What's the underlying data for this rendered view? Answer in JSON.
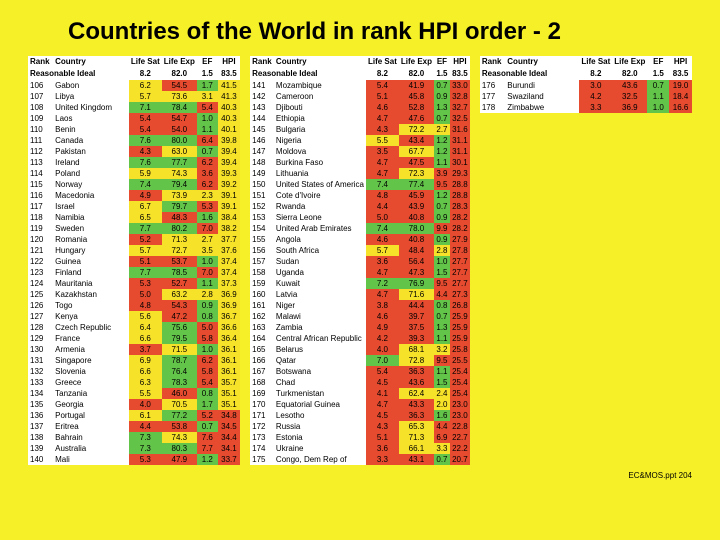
{
  "background_color": "#f5f028",
  "title": "Countries of the World in rank HPI order - 2",
  "footer": "EC&MOS.ppt 204",
  "headers": {
    "rank": "Rank",
    "country": "Country",
    "lifesat": "Life Sat",
    "lifeexp": "Life Exp",
    "ef": "EF",
    "hpi": "HPI"
  },
  "ideal": {
    "label": "Reasonable Ideal",
    "lifesat": "8.2",
    "lifeexp": "82.0",
    "ef": "1.5",
    "hpi": "83.5"
  },
  "color_thresholds": {
    "lifesat": {
      "green": 7.0,
      "yellow": 5.5
    },
    "lifeexp": {
      "green": 75,
      "yellow": 60
    },
    "ef": {
      "green_max": 1.8,
      "yellow_max": 3.5
    },
    "hpi": {
      "green": 50,
      "yellow": 35
    }
  },
  "colors": {
    "green": "#63c44a",
    "yellow": "#f7e22a",
    "red": "#e64a2f"
  },
  "table1": [
    {
      "rank": "106",
      "country": "Gabon",
      "lifesat": "6.2",
      "lifeexp": "54.5",
      "ef": "1.7",
      "hpi": "41.5"
    },
    {
      "rank": "107",
      "country": "Libya",
      "lifesat": "5.7",
      "lifeexp": "73.6",
      "ef": "3.1",
      "hpi": "41.3"
    },
    {
      "rank": "108",
      "country": "United Kingdom",
      "lifesat": "7.1",
      "lifeexp": "78.4",
      "ef": "5.4",
      "hpi": "40.3"
    },
    {
      "rank": "109",
      "country": "Laos",
      "lifesat": "5.4",
      "lifeexp": "54.7",
      "ef": "1.0",
      "hpi": "40.3"
    },
    {
      "rank": "110",
      "country": "Benin",
      "lifesat": "5.4",
      "lifeexp": "54.0",
      "ef": "1.1",
      "hpi": "40.1"
    },
    {
      "rank": "111",
      "country": "Canada",
      "lifesat": "7.6",
      "lifeexp": "80.0",
      "ef": "6.4",
      "hpi": "39.8"
    },
    {
      "rank": "112",
      "country": "Pakistan",
      "lifesat": "4.3",
      "lifeexp": "63.0",
      "ef": "0.7",
      "hpi": "39.4"
    },
    {
      "rank": "113",
      "country": "Ireland",
      "lifesat": "7.6",
      "lifeexp": "77.7",
      "ef": "6.2",
      "hpi": "39.4"
    },
    {
      "rank": "114",
      "country": "Poland",
      "lifesat": "5.9",
      "lifeexp": "74.3",
      "ef": "3.6",
      "hpi": "39.3"
    },
    {
      "rank": "115",
      "country": "Norway",
      "lifesat": "7.4",
      "lifeexp": "79.4",
      "ef": "6.2",
      "hpi": "39.2"
    },
    {
      "rank": "116",
      "country": "Macedonia",
      "lifesat": "4.9",
      "lifeexp": "73.9",
      "ef": "2.3",
      "hpi": "39.1"
    },
    {
      "rank": "117",
      "country": "Israel",
      "lifesat": "6.7",
      "lifeexp": "79.7",
      "ef": "5.3",
      "hpi": "39.1"
    },
    {
      "rank": "118",
      "country": "Namibia",
      "lifesat": "6.5",
      "lifeexp": "48.3",
      "ef": "1.6",
      "hpi": "38.4"
    },
    {
      "rank": "119",
      "country": "Sweden",
      "lifesat": "7.7",
      "lifeexp": "80.2",
      "ef": "7.0",
      "hpi": "38.2"
    },
    {
      "rank": "120",
      "country": "Romania",
      "lifesat": "5.2",
      "lifeexp": "71.3",
      "ef": "2.7",
      "hpi": "37.7"
    },
    {
      "rank": "121",
      "country": "Hungary",
      "lifesat": "5.7",
      "lifeexp": "72.7",
      "ef": "3.5",
      "hpi": "37.6"
    },
    {
      "rank": "122",
      "country": "Guinea",
      "lifesat": "5.1",
      "lifeexp": "53.7",
      "ef": "1.0",
      "hpi": "37.4"
    },
    {
      "rank": "123",
      "country": "Finland",
      "lifesat": "7.7",
      "lifeexp": "78.5",
      "ef": "7.0",
      "hpi": "37.4"
    },
    {
      "rank": "124",
      "country": "Mauritania",
      "lifesat": "5.3",
      "lifeexp": "52.7",
      "ef": "1.1",
      "hpi": "37.3"
    },
    {
      "rank": "125",
      "country": "Kazakhstan",
      "lifesat": "5.0",
      "lifeexp": "63.2",
      "ef": "2.8",
      "hpi": "36.9"
    },
    {
      "rank": "126",
      "country": "Togo",
      "lifesat": "4.8",
      "lifeexp": "54.3",
      "ef": "0.9",
      "hpi": "36.9"
    },
    {
      "rank": "127",
      "country": "Kenya",
      "lifesat": "5.6",
      "lifeexp": "47.2",
      "ef": "0.8",
      "hpi": "36.7"
    },
    {
      "rank": "128",
      "country": "Czech Republic",
      "lifesat": "6.4",
      "lifeexp": "75.6",
      "ef": "5.0",
      "hpi": "36.6"
    },
    {
      "rank": "129",
      "country": "France",
      "lifesat": "6.6",
      "lifeexp": "79.5",
      "ef": "5.8",
      "hpi": "36.4"
    },
    {
      "rank": "130",
      "country": "Armenia",
      "lifesat": "3.7",
      "lifeexp": "71.5",
      "ef": "1.0",
      "hpi": "36.1"
    },
    {
      "rank": "131",
      "country": "Singapore",
      "lifesat": "6.9",
      "lifeexp": "78.7",
      "ef": "6.2",
      "hpi": "36.1"
    },
    {
      "rank": "132",
      "country": "Slovenia",
      "lifesat": "6.6",
      "lifeexp": "76.4",
      "ef": "5.8",
      "hpi": "36.1"
    },
    {
      "rank": "133",
      "country": "Greece",
      "lifesat": "6.3",
      "lifeexp": "78.3",
      "ef": "5.4",
      "hpi": "35.7"
    },
    {
      "rank": "134",
      "country": "Tanzania",
      "lifesat": "5.5",
      "lifeexp": "46.0",
      "ef": "0.8",
      "hpi": "35.1"
    },
    {
      "rank": "135",
      "country": "Georgia",
      "lifesat": "4.0",
      "lifeexp": "70.5",
      "ef": "1.7",
      "hpi": "35.1"
    },
    {
      "rank": "136",
      "country": "Portugal",
      "lifesat": "6.1",
      "lifeexp": "77.2",
      "ef": "5.2",
      "hpi": "34.8"
    },
    {
      "rank": "137",
      "country": "Eritrea",
      "lifesat": "4.4",
      "lifeexp": "53.8",
      "ef": "0.7",
      "hpi": "34.5"
    },
    {
      "rank": "138",
      "country": "Bahrain",
      "lifesat": "7.3",
      "lifeexp": "74.3",
      "ef": "7.6",
      "hpi": "34.4"
    },
    {
      "rank": "139",
      "country": "Australia",
      "lifesat": "7.3",
      "lifeexp": "80.3",
      "ef": "7.7",
      "hpi": "34.1"
    },
    {
      "rank": "140",
      "country": "Mali",
      "lifesat": "5.3",
      "lifeexp": "47.9",
      "ef": "1.2",
      "hpi": "33.7"
    }
  ],
  "table2": [
    {
      "rank": "141",
      "country": "Mozambique",
      "lifesat": "5.4",
      "lifeexp": "41.9",
      "ef": "0.7",
      "hpi": "33.0"
    },
    {
      "rank": "142",
      "country": "Cameroon",
      "lifesat": "5.1",
      "lifeexp": "45.8",
      "ef": "0.9",
      "hpi": "32.8"
    },
    {
      "rank": "143",
      "country": "Djibouti",
      "lifesat": "4.6",
      "lifeexp": "52.8",
      "ef": "1.3",
      "hpi": "32.7"
    },
    {
      "rank": "144",
      "country": "Ethiopia",
      "lifesat": "4.7",
      "lifeexp": "47.6",
      "ef": "0.7",
      "hpi": "32.5"
    },
    {
      "rank": "145",
      "country": "Bulgaria",
      "lifesat": "4.3",
      "lifeexp": "72.2",
      "ef": "2.7",
      "hpi": "31.6"
    },
    {
      "rank": "146",
      "country": "Nigeria",
      "lifesat": "5.5",
      "lifeexp": "43.4",
      "ef": "1.2",
      "hpi": "31.1"
    },
    {
      "rank": "147",
      "country": "Moldova",
      "lifesat": "3.5",
      "lifeexp": "67.7",
      "ef": "1.2",
      "hpi": "31.1"
    },
    {
      "rank": "148",
      "country": "Burkina Faso",
      "lifesat": "4.7",
      "lifeexp": "47.5",
      "ef": "1.1",
      "hpi": "30.1"
    },
    {
      "rank": "149",
      "country": "Lithuania",
      "lifesat": "4.7",
      "lifeexp": "72.3",
      "ef": "3.9",
      "hpi": "29.3"
    },
    {
      "rank": "150",
      "country": "United States of America",
      "lifesat": "7.4",
      "lifeexp": "77.4",
      "ef": "9.5",
      "hpi": "28.8"
    },
    {
      "rank": "151",
      "country": "Cote d'Ivoire",
      "lifesat": "4.8",
      "lifeexp": "45.9",
      "ef": "1.2",
      "hpi": "28.8"
    },
    {
      "rank": "152",
      "country": "Rwanda",
      "lifesat": "4.4",
      "lifeexp": "43.9",
      "ef": "0.7",
      "hpi": "28.3"
    },
    {
      "rank": "153",
      "country": "Sierra Leone",
      "lifesat": "5.0",
      "lifeexp": "40.8",
      "ef": "0.9",
      "hpi": "28.2"
    },
    {
      "rank": "154",
      "country": "United Arab Emirates",
      "lifesat": "7.4",
      "lifeexp": "78.0",
      "ef": "9.9",
      "hpi": "28.2"
    },
    {
      "rank": "155",
      "country": "Angola",
      "lifesat": "4.6",
      "lifeexp": "40.8",
      "ef": "0.9",
      "hpi": "27.9"
    },
    {
      "rank": "156",
      "country": "South Africa",
      "lifesat": "5.7",
      "lifeexp": "48.4",
      "ef": "2.8",
      "hpi": "27.8"
    },
    {
      "rank": "157",
      "country": "Sudan",
      "lifesat": "3.6",
      "lifeexp": "56.4",
      "ef": "1.0",
      "hpi": "27.7"
    },
    {
      "rank": "158",
      "country": "Uganda",
      "lifesat": "4.7",
      "lifeexp": "47.3",
      "ef": "1.5",
      "hpi": "27.7"
    },
    {
      "rank": "159",
      "country": "Kuwait",
      "lifesat": "7.2",
      "lifeexp": "76.9",
      "ef": "9.5",
      "hpi": "27.7"
    },
    {
      "rank": "160",
      "country": "Latvia",
      "lifesat": "4.7",
      "lifeexp": "71.6",
      "ef": "4.4",
      "hpi": "27.3"
    },
    {
      "rank": "161",
      "country": "Niger",
      "lifesat": "3.8",
      "lifeexp": "44.4",
      "ef": "0.8",
      "hpi": "26.8"
    },
    {
      "rank": "162",
      "country": "Malawi",
      "lifesat": "4.6",
      "lifeexp": "39.7",
      "ef": "0.7",
      "hpi": "25.9"
    },
    {
      "rank": "163",
      "country": "Zambia",
      "lifesat": "4.9",
      "lifeexp": "37.5",
      "ef": "1.3",
      "hpi": "25.9"
    },
    {
      "rank": "164",
      "country": "Central African Republic",
      "lifesat": "4.2",
      "lifeexp": "39.3",
      "ef": "1.1",
      "hpi": "25.9"
    },
    {
      "rank": "165",
      "country": "Belarus",
      "lifesat": "4.0",
      "lifeexp": "68.1",
      "ef": "3.2",
      "hpi": "25.8"
    },
    {
      "rank": "166",
      "country": "Qatar",
      "lifesat": "7.0",
      "lifeexp": "72.8",
      "ef": "9.5",
      "hpi": "25.5"
    },
    {
      "rank": "167",
      "country": "Botswana",
      "lifesat": "5.4",
      "lifeexp": "36.3",
      "ef": "1.1",
      "hpi": "25.4"
    },
    {
      "rank": "168",
      "country": "Chad",
      "lifesat": "4.5",
      "lifeexp": "43.6",
      "ef": "1.5",
      "hpi": "25.4"
    },
    {
      "rank": "169",
      "country": "Turkmenistan",
      "lifesat": "4.1",
      "lifeexp": "62.4",
      "ef": "2.4",
      "hpi": "25.4"
    },
    {
      "rank": "170",
      "country": "Equatorial Guinea",
      "lifesat": "4.7",
      "lifeexp": "43.3",
      "ef": "2.0",
      "hpi": "23.0"
    },
    {
      "rank": "171",
      "country": "Lesotho",
      "lifesat": "4.5",
      "lifeexp": "36.3",
      "ef": "1.6",
      "hpi": "23.0"
    },
    {
      "rank": "172",
      "country": "Russia",
      "lifesat": "4.3",
      "lifeexp": "65.3",
      "ef": "4.4",
      "hpi": "22.8"
    },
    {
      "rank": "173",
      "country": "Estonia",
      "lifesat": "5.1",
      "lifeexp": "71.3",
      "ef": "6.9",
      "hpi": "22.7"
    },
    {
      "rank": "174",
      "country": "Ukraine",
      "lifesat": "3.6",
      "lifeexp": "66.1",
      "ef": "3.3",
      "hpi": "22.2"
    },
    {
      "rank": "175",
      "country": "Congo, Dem Rep of",
      "lifesat": "3.3",
      "lifeexp": "43.1",
      "ef": "0.7",
      "hpi": "20.7"
    }
  ],
  "table3": [
    {
      "rank": "176",
      "country": "Burundi",
      "lifesat": "3.0",
      "lifeexp": "43.6",
      "ef": "0.7",
      "hpi": "19.0"
    },
    {
      "rank": "177",
      "country": "Swaziland",
      "lifesat": "4.2",
      "lifeexp": "32.5",
      "ef": "1.1",
      "hpi": "18.4"
    },
    {
      "rank": "178",
      "country": "Zimbabwe",
      "lifesat": "3.3",
      "lifeexp": "36.9",
      "ef": "1.0",
      "hpi": "16.6"
    }
  ]
}
